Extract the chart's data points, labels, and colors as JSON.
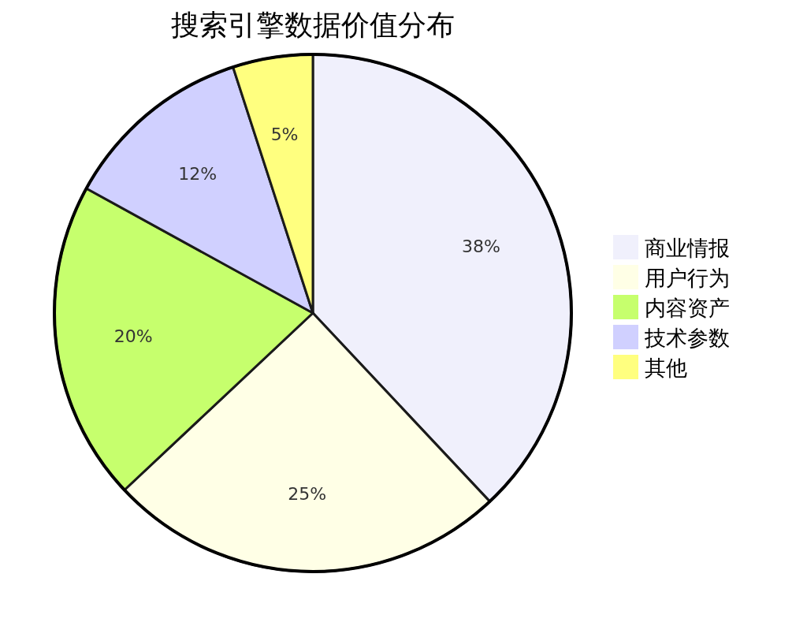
{
  "chart_data": {
    "type": "pie",
    "title": "搜索引擎数据价值分布",
    "categories": [
      "商业情报",
      "用户行为",
      "内容资产",
      "技术参数",
      "其他"
    ],
    "values": [
      38,
      25,
      20,
      12,
      5
    ],
    "colors": [
      "#f0f0fc",
      "#ffffe6",
      "#c6ff6d",
      "#d0d0ff",
      "#ffff7f"
    ],
    "value_labels": [
      "38%",
      "25%",
      "20%",
      "12%",
      "5%"
    ],
    "legend": "right"
  }
}
